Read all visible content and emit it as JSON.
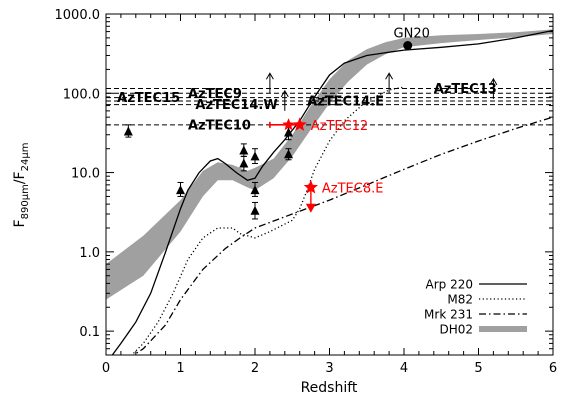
{
  "colors": {
    "axis": "#000000",
    "band": "#a0a0a0",
    "highlight": "#ff0000"
  },
  "chart_data": {
    "type": "line",
    "xlabel": "Redshift",
    "ylabel": "F890μm/F24μm",
    "ylabel_parts": {
      "main": "F",
      "sub1": "890μm",
      "sep": "/F",
      "sub2": "24μm"
    },
    "xlim": [
      0,
      6
    ],
    "ylim": [
      0.05,
      1000
    ],
    "yscale": "log",
    "x_ticks": [
      "0",
      "1",
      "2",
      "3",
      "4",
      "5",
      "6"
    ],
    "y_ticks": [
      "0.1",
      "1.0",
      "10.0",
      "100.0",
      "1000.0"
    ],
    "y_tick_values": [
      0.1,
      1,
      10,
      100,
      1000
    ],
    "series": [
      {
        "name": "Arp 220",
        "style": "solid",
        "x": [
          0.05,
          0.2,
          0.4,
          0.6,
          0.8,
          1.0,
          1.1,
          1.25,
          1.4,
          1.5,
          1.6,
          1.75,
          1.9,
          2.0,
          2.1,
          2.25,
          2.4,
          2.6,
          2.8,
          3.0,
          3.2,
          3.5,
          3.8,
          4.0,
          4.5,
          5.0,
          5.5,
          6.0
        ],
        "y": [
          0.045,
          0.07,
          0.13,
          0.3,
          1.0,
          3.5,
          6.0,
          10,
          14,
          15,
          13,
          10,
          8.0,
          8.5,
          12,
          18,
          26,
          45,
          90,
          170,
          240,
          300,
          330,
          350,
          380,
          420,
          500,
          620
        ]
      },
      {
        "name": "M82",
        "style": "dotted",
        "x": [
          0.3,
          0.5,
          0.7,
          0.9,
          1.1,
          1.3,
          1.5,
          1.7,
          1.8,
          2.0,
          2.2,
          2.5,
          2.6,
          2.7,
          2.8,
          3.0,
          3.2,
          3.5,
          3.8,
          4.0
        ],
        "y": [
          0.045,
          0.07,
          0.13,
          0.3,
          0.8,
          1.5,
          2.0,
          2.0,
          1.7,
          1.5,
          1.8,
          2.5,
          3.5,
          6,
          11,
          25,
          45,
          80,
          110,
          120
        ]
      },
      {
        "name": "Mrk 231",
        "style": "dashdot",
        "x": [
          0.3,
          0.5,
          0.8,
          1.0,
          1.3,
          1.6,
          1.8,
          2.0,
          2.5,
          3.0,
          3.5,
          4.0,
          4.5,
          5.0,
          5.5,
          6.0
        ],
        "y": [
          0.045,
          0.06,
          0.12,
          0.25,
          0.6,
          1.1,
          1.5,
          2.0,
          3.0,
          4.5,
          7,
          11,
          17,
          25,
          36,
          50
        ]
      }
    ],
    "band": {
      "name": "DH02",
      "x": [
        0.0,
        0.5,
        1.0,
        1.3,
        1.5,
        1.7,
        1.9,
        2.0,
        2.25,
        2.5,
        2.75,
        3.0,
        3.25,
        3.5,
        3.75,
        4.0,
        4.5,
        5.0,
        5.5,
        6.0
      ],
      "lower": [
        0.25,
        0.5,
        1.8,
        5.0,
        8.0,
        8.0,
        6.5,
        6.0,
        8.5,
        16,
        35,
        75,
        140,
        230,
        310,
        380,
        430,
        470,
        510,
        560
      ],
      "upper": [
        0.7,
        1.6,
        4.5,
        10.5,
        13.5,
        12.5,
        10.5,
        11.5,
        15,
        30,
        70,
        150,
        260,
        360,
        440,
        500,
        540,
        560,
        590,
        640
      ]
    },
    "reference_lines": [
      {
        "label": "AzTEC13",
        "y": 115,
        "label_x": 4.4
      },
      {
        "label": "AzTEC9",
        "y": 100,
        "label_x": 1.1
      },
      {
        "label": "AzTEC15",
        "y": 88,
        "label_x": 0.15
      },
      {
        "label": "AzTEC14.E",
        "y": 80,
        "label_x": 2.7
      },
      {
        "label": "AzTEC14.W",
        "y": 72,
        "label_x": 1.2
      },
      {
        "label": "AzTEC10",
        "y": 40,
        "label_x": 1.1
      }
    ],
    "lower_limits": [
      {
        "x": 2.2,
        "y": 100
      },
      {
        "x": 2.4,
        "y": 60
      },
      {
        "x": 3.8,
        "y": 100
      },
      {
        "x": 5.2,
        "y": 85
      }
    ],
    "points": [
      {
        "x": 0.3,
        "y": 33,
        "err_low": 28,
        "err_high": 40
      },
      {
        "x": 1.0,
        "y": 6.0,
        "err_low": 5.0,
        "err_high": 7.5
      },
      {
        "x": 1.85,
        "y": 19,
        "err_low": 16,
        "err_high": 23
      },
      {
        "x": 1.85,
        "y": 13,
        "err_low": 10.5,
        "err_high": 16
      },
      {
        "x": 2.0,
        "y": 16,
        "err_low": 13,
        "err_high": 20
      },
      {
        "x": 2.0,
        "y": 6.0,
        "err_low": 5.0,
        "err_high": 7.5
      },
      {
        "x": 2.0,
        "y": 3.3,
        "err_low": 2.6,
        "err_high": 4.2
      },
      {
        "x": 2.45,
        "y": 32,
        "err_low": 26,
        "err_high": 38
      },
      {
        "x": 2.45,
        "y": 17,
        "err_low": 14.5,
        "err_high": 20
      }
    ],
    "highlighted": [
      {
        "label": "AzTEC12",
        "x": 2.6,
        "y": 40,
        "x_err_low": 2.2,
        "x_err_high": 2.6
      },
      {
        "label": "AzTEC8.E",
        "x": 2.75,
        "y": 6.5,
        "upper_limit_y": 3.5
      }
    ],
    "named_point": {
      "label": "GN20",
      "x": 4.05,
      "y": 400
    },
    "legend": {
      "position": "bottom-right",
      "entries": [
        {
          "label": "Arp 220",
          "style": "solid"
        },
        {
          "label": "M82",
          "style": "dotted"
        },
        {
          "label": "Mrk 231",
          "style": "dashdot"
        },
        {
          "label": "DH02",
          "style": "band"
        }
      ]
    }
  }
}
